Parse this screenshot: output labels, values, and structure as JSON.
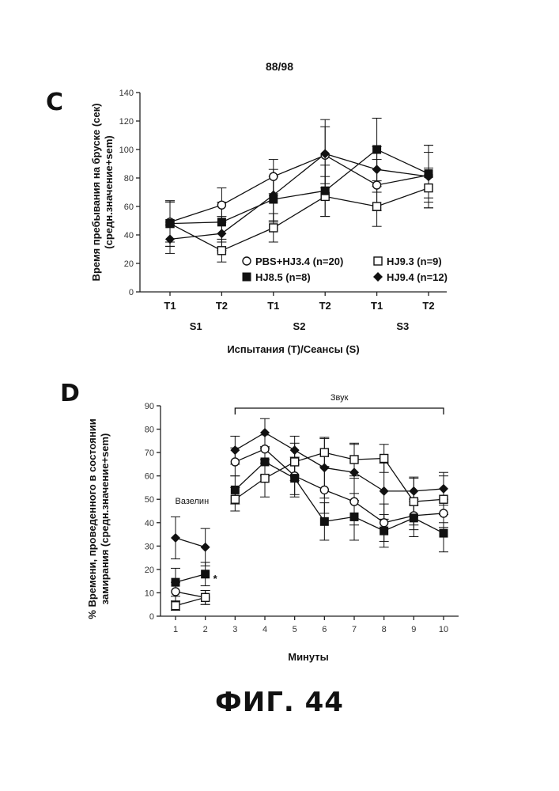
{
  "page_number": "88/98",
  "figure_label": "ФИГ. 44",
  "chart_data": [
    {
      "panel": "C",
      "type": "line",
      "xlabel": "Испытания (T)/Сеансы (S)",
      "ylabel": "Время пребывания на бруске (сек) (средн.значение+sem)",
      "ylim": [
        0,
        140
      ],
      "yticks": [
        0,
        20,
        40,
        60,
        80,
        100,
        120,
        140
      ],
      "categories": [
        "T1",
        "T2",
        "T1",
        "T2",
        "T1",
        "T2"
      ],
      "groups": [
        {
          "label": "S1",
          "from": 0,
          "to": 1
        },
        {
          "label": "S2",
          "from": 2,
          "to": 3
        },
        {
          "label": "S3",
          "from": 4,
          "to": 5
        }
      ],
      "series": [
        {
          "name": "PBS+HJ3.4 (n=20)",
          "marker": "circle-open",
          "values": [
            49,
            61,
            81,
            96,
            75,
            82
          ],
          "err": [
            14,
            12,
            12,
            20,
            18,
            16
          ]
        },
        {
          "name": "HJ9.3 (n=9)",
          "marker": "square-open",
          "values": [
            48,
            29,
            45,
            67,
            60,
            73
          ],
          "err": [
            16,
            8,
            10,
            14,
            14,
            14
          ]
        },
        {
          "name": "HJ8.5 (n=8)",
          "marker": "square-filled",
          "values": [
            48,
            49,
            65,
            71,
            100,
            83
          ],
          "err": [
            16,
            14,
            16,
            18,
            22,
            20
          ]
        },
        {
          "name": "HJ9.4 (n=12)",
          "marker": "diamond-filled",
          "values": [
            37,
            41,
            68,
            97,
            86,
            81
          ],
          "err": [
            10,
            12,
            18,
            24,
            16,
            22
          ]
        }
      ],
      "legend_layout": [
        [
          "PBS+HJ3.4 (n=20)",
          "HJ9.3 (n=9)"
        ],
        [
          "HJ8.5 (n=8)",
          "HJ9.4 (n=12)"
        ]
      ]
    },
    {
      "panel": "D",
      "type": "line",
      "xlabel": "Минуты",
      "ylabel": "% Времени, проведенного в состоянии замирания (средн.значение+sem)",
      "ylim": [
        0,
        90
      ],
      "yticks": [
        0,
        10,
        20,
        30,
        40,
        50,
        60,
        70,
        80,
        90
      ],
      "x": [
        1,
        2,
        3,
        4,
        5,
        6,
        7,
        8,
        9,
        10
      ],
      "annotations": [
        {
          "text": "Вазелин",
          "x_range": [
            1,
            2
          ]
        },
        {
          "text": "Звук",
          "x_range": [
            3,
            10
          ]
        },
        {
          "text": "*",
          "x": 2,
          "y": 18
        }
      ],
      "series": [
        {
          "name": "PBS+HJ3.4",
          "marker": "circle-open",
          "values": [
            10.5,
            8,
            66,
            71.5,
            60,
            54,
            49,
            40,
            43,
            44
          ],
          "err": [
            4,
            3,
            6,
            6,
            8,
            10,
            10,
            8,
            6,
            6
          ]
        },
        {
          "name": "HJ9.3",
          "marker": "square-open",
          "values": [
            4.5,
            8,
            50,
            59,
            66,
            70,
            67,
            67.5,
            49,
            50
          ],
          "err": [
            2,
            3,
            5,
            8,
            8,
            6,
            7,
            6,
            10,
            10
          ]
        },
        {
          "name": "HJ8.5",
          "marker": "square-filled",
          "values": [
            14.5,
            18,
            54,
            66,
            59,
            40.5,
            42.5,
            36.5,
            42,
            35.5
          ],
          "err": [
            6,
            5,
            6,
            6,
            8,
            8,
            10,
            7,
            8,
            8
          ]
        },
        {
          "name": "HJ9.4",
          "marker": "diamond-filled",
          "values": [
            33.5,
            29.5,
            71,
            78.5,
            71,
            63.5,
            61.5,
            53.5,
            53.5,
            54.5
          ],
          "err": [
            9,
            8,
            6,
            6,
            6,
            13,
            12,
            12,
            6,
            7
          ]
        }
      ]
    }
  ]
}
